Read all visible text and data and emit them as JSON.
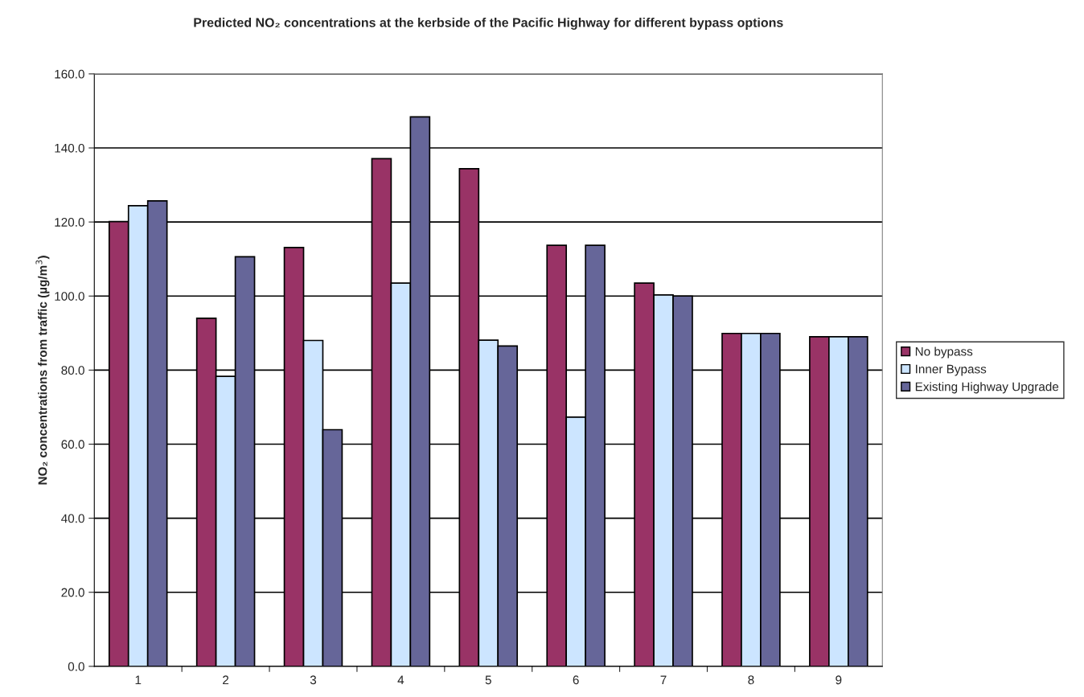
{
  "chart_data": {
    "type": "bar",
    "title": "Predicted NO₂ concentrations at the kerbside of the Pacific Highway for different bypass options",
    "ylabel": "NO₂ concentrations from traffic (µg/m$^{3}$)",
    "categories": [
      "1",
      "2",
      "3",
      "4",
      "5",
      "6",
      "7",
      "8",
      "9"
    ],
    "series": [
      {
        "name": "No bypass",
        "color": "#993366",
        "values": [
          120.1,
          94.0,
          113.1,
          137.1,
          134.4,
          113.7,
          103.5,
          89.9,
          89.0
        ]
      },
      {
        "name": "Inner Bypass",
        "color": "#cce5ff",
        "values": [
          124.4,
          78.3,
          88.0,
          103.5,
          88.1,
          67.3,
          100.3,
          89.9,
          89.0
        ]
      },
      {
        "name": "Existing Highway Upgrade",
        "color": "#666699",
        "values": [
          125.7,
          110.6,
          63.9,
          148.4,
          86.5,
          113.7,
          100.0,
          89.9,
          89.0
        ]
      }
    ],
    "ylim": [
      0,
      160
    ],
    "yticks": [
      {
        "value": 0,
        "label": "0.0"
      },
      {
        "value": 20,
        "label": "20.0"
      },
      {
        "value": 40,
        "label": "40.0"
      },
      {
        "value": 60,
        "label": "60.0"
      },
      {
        "value": 80,
        "label": "80.0"
      },
      {
        "value": 100,
        "label": "100.0"
      },
      {
        "value": 120,
        "label": "120.0"
      },
      {
        "value": 140,
        "label": "140.0"
      },
      {
        "value": 160,
        "label": "160.0"
      }
    ],
    "grid": "y",
    "legend": "right"
  }
}
